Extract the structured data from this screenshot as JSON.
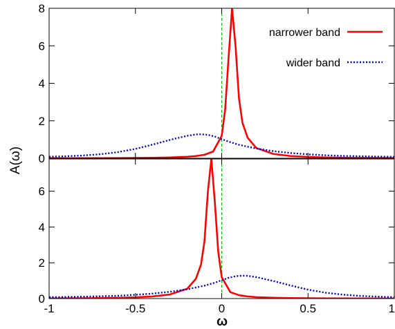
{
  "chart_data": {
    "type": "line",
    "xlabel": "ω",
    "ylabel": "A(ω)",
    "xlim": [
      -1,
      1
    ],
    "x_ticks": [
      -1,
      -0.5,
      0,
      0.5,
      1
    ],
    "x_tick_labels": [
      "-1",
      "-0.5",
      "0",
      "0.5",
      "1"
    ],
    "legend_placement": "top-right",
    "grid": false,
    "colors": {
      "narrow": "#ff0000",
      "wide": "#0000cc",
      "reference": "#00bb00"
    },
    "reference_line_x": 0,
    "panels": [
      {
        "name": "top",
        "ylim": [
          0,
          8
        ],
        "y_ticks": [
          0,
          2,
          4,
          6,
          8
        ],
        "y_tick_labels": [
          "0",
          "2",
          "4",
          "6",
          "8"
        ],
        "legend": [
          {
            "label": "narrower band",
            "style": "solid",
            "color": "#ff0000"
          },
          {
            "label": "wider band",
            "style": "dotted",
            "color": "#0000cc"
          }
        ],
        "series": [
          {
            "name": "narrower band",
            "style": "solid",
            "color": "#ff0000",
            "points": [
              [
                -1,
                0.003
              ],
              [
                -0.8,
                0.006
              ],
              [
                -0.6,
                0.012
              ],
              [
                -0.4,
                0.025
              ],
              [
                -0.3,
                0.045
              ],
              [
                -0.2,
                0.08
              ],
              [
                -0.15,
                0.12
              ],
              [
                -0.1,
                0.19
              ],
              [
                -0.05,
                0.36
              ],
              [
                0,
                1.2
              ],
              [
                0.02,
                2.6
              ],
              [
                0.04,
                5.4
              ],
              [
                0.06,
                8.0
              ],
              [
                0.08,
                6.0
              ],
              [
                0.1,
                3.2
              ],
              [
                0.12,
                1.9
              ],
              [
                0.15,
                1.1
              ],
              [
                0.2,
                0.55
              ],
              [
                0.3,
                0.23
              ],
              [
                0.4,
                0.12
              ],
              [
                0.5,
                0.07
              ],
              [
                0.6,
                0.045
              ],
              [
                0.8,
                0.02
              ],
              [
                1,
                0.01
              ]
            ]
          },
          {
            "name": "wider band",
            "style": "dotted",
            "color": "#0000cc",
            "points": [
              [
                -1,
                0.08
              ],
              [
                -0.9,
                0.11
              ],
              [
                -0.8,
                0.15
              ],
              [
                -0.7,
                0.22
              ],
              [
                -0.6,
                0.33
              ],
              [
                -0.5,
                0.5
              ],
              [
                -0.4,
                0.73
              ],
              [
                -0.3,
                0.98
              ],
              [
                -0.2,
                1.2
              ],
              [
                -0.15,
                1.27
              ],
              [
                -0.12,
                1.28
              ],
              [
                -0.08,
                1.25
              ],
              [
                -0.04,
                1.16
              ],
              [
                0,
                1.02
              ],
              [
                0.05,
                0.86
              ],
              [
                0.1,
                0.72
              ],
              [
                0.2,
                0.52
              ],
              [
                0.3,
                0.38
              ],
              [
                0.4,
                0.28
              ],
              [
                0.5,
                0.21
              ],
              [
                0.6,
                0.16
              ],
              [
                0.7,
                0.13
              ],
              [
                0.8,
                0.11
              ],
              [
                0.9,
                0.09
              ],
              [
                1,
                0.08
              ]
            ]
          }
        ]
      },
      {
        "name": "bottom",
        "ylim": [
          0,
          7.8
        ],
        "y_ticks": [
          0,
          2,
          4,
          6
        ],
        "y_tick_labels": [
          "0",
          "2",
          "4",
          "6"
        ],
        "series": [
          {
            "name": "narrower band",
            "style": "solid",
            "color": "#ff0000",
            "points": [
              [
                -1,
                0.01
              ],
              [
                -0.8,
                0.02
              ],
              [
                -0.6,
                0.045
              ],
              [
                -0.5,
                0.07
              ],
              [
                -0.4,
                0.12
              ],
              [
                -0.3,
                0.23
              ],
              [
                -0.2,
                0.55
              ],
              [
                -0.15,
                1.1
              ],
              [
                -0.12,
                1.9
              ],
              [
                -0.1,
                3.2
              ],
              [
                -0.08,
                6.0
              ],
              [
                -0.06,
                7.8
              ],
              [
                -0.04,
                5.4
              ],
              [
                -0.02,
                2.6
              ],
              [
                0,
                1.2
              ],
              [
                0.05,
                0.36
              ],
              [
                0.1,
                0.19
              ],
              [
                0.15,
                0.12
              ],
              [
                0.2,
                0.08
              ],
              [
                0.3,
                0.045
              ],
              [
                0.4,
                0.025
              ],
              [
                0.6,
                0.012
              ],
              [
                0.8,
                0.006
              ],
              [
                1,
                0.003
              ]
            ]
          },
          {
            "name": "wider band",
            "style": "dotted",
            "color": "#0000cc",
            "points": [
              [
                -1,
                0.08
              ],
              [
                -0.9,
                0.09
              ],
              [
                -0.8,
                0.11
              ],
              [
                -0.7,
                0.13
              ],
              [
                -0.6,
                0.16
              ],
              [
                -0.5,
                0.21
              ],
              [
                -0.4,
                0.28
              ],
              [
                -0.3,
                0.38
              ],
              [
                -0.2,
                0.52
              ],
              [
                -0.1,
                0.72
              ],
              [
                -0.05,
                0.86
              ],
              [
                0,
                1.02
              ],
              [
                0.04,
                1.16
              ],
              [
                0.08,
                1.25
              ],
              [
                0.12,
                1.28
              ],
              [
                0.15,
                1.27
              ],
              [
                0.2,
                1.2
              ],
              [
                0.3,
                0.98
              ],
              [
                0.4,
                0.73
              ],
              [
                0.5,
                0.5
              ],
              [
                0.6,
                0.33
              ],
              [
                0.7,
                0.22
              ],
              [
                0.8,
                0.15
              ],
              [
                0.9,
                0.11
              ],
              [
                1,
                0.08
              ]
            ]
          }
        ]
      }
    ]
  }
}
